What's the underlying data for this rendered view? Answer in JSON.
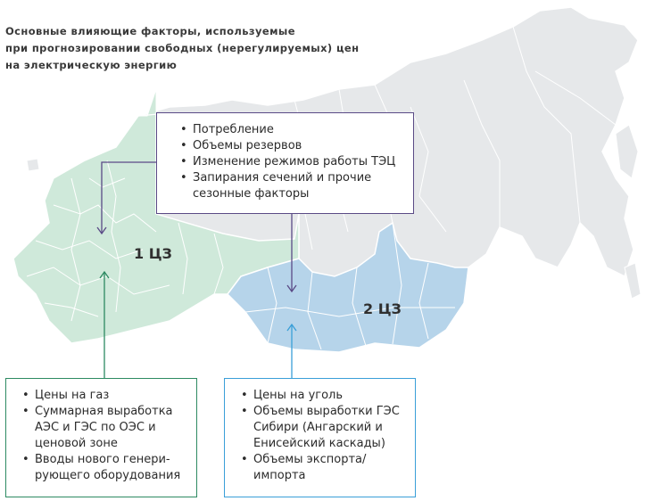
{
  "title": {
    "line1": "Основные влияющие факторы, используемые",
    "line2": "при прогнозировании свободных (нерегулируемых) цен",
    "line3": "на электрическую энергию"
  },
  "zones": {
    "zone1": "1 ЦЗ",
    "zone2": "2 ЦЗ"
  },
  "top_box": {
    "items": [
      "Потребление",
      "Объемы резервов",
      "Изменение режимов работы ТЭЦ",
      "Запирания сечений и прочие сезонные факторы"
    ]
  },
  "left_box": {
    "items": [
      "Цены на газ",
      "Суммарная выработка АЭС и ГЭС по ОЭС и ценовой зоне",
      "Вводы нового генери-рующего оборудования"
    ]
  },
  "right_box": {
    "items": [
      "Цены на уголь",
      "Объемы выработки ГЭС Сибири (Ангарский и Енисейский каскады)",
      "Объемы экспорта/импорта"
    ]
  },
  "colors": {
    "russia_fill": "#e6e8ea",
    "zone1_fill": "#cfe9da",
    "zone2_fill": "#b6d4ea",
    "top_arrow": "#5a4a86",
    "left_arrow": "#2d8a62",
    "right_arrow": "#3a9fd8"
  }
}
